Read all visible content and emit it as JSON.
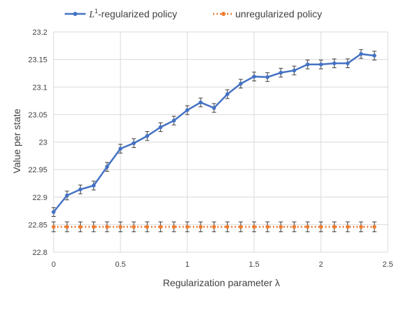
{
  "chart_data": {
    "type": "line",
    "xlabel": "Regularization parameter λ",
    "ylabel": "Value per state",
    "xlim": [
      0,
      2.5
    ],
    "ylim": [
      22.8,
      23.2
    ],
    "xticks": [
      "0",
      "0.5",
      "1",
      "1.5",
      "2",
      "2.5"
    ],
    "yticks": [
      "22.8",
      "22.85",
      "22.9",
      "22.95",
      "23",
      "23.05",
      "23.1",
      "23.15",
      "23.2"
    ],
    "grid": true,
    "legend_position": "top",
    "series": [
      {
        "name": "-regularized policy",
        "name_math": "L",
        "name_math_sup": "1",
        "color": "#4472c4",
        "line_style": "solid",
        "marker": "circle",
        "x": [
          0,
          0.1,
          0.2,
          0.3,
          0.4,
          0.5,
          0.6,
          0.7,
          0.8,
          0.9,
          1.0,
          1.1,
          1.2,
          1.3,
          1.4,
          1.5,
          1.6,
          1.7,
          1.8,
          1.9,
          2.0,
          2.1,
          2.2,
          2.3,
          2.4
        ],
        "y": [
          22.873,
          22.903,
          22.914,
          22.921,
          22.955,
          22.988,
          22.998,
          23.011,
          23.027,
          23.039,
          23.058,
          23.072,
          23.062,
          23.087,
          23.106,
          23.119,
          23.118,
          23.126,
          23.13,
          23.141,
          23.141,
          23.143,
          23.143,
          23.16,
          23.157
        ],
        "error": 0.008
      },
      {
        "name": "unregularized policy",
        "color": "#ed7d31",
        "line_style": "dotted",
        "marker": "circle",
        "x": [
          0,
          0.1,
          0.2,
          0.3,
          0.4,
          0.5,
          0.6,
          0.7,
          0.8,
          0.9,
          1.0,
          1.1,
          1.2,
          1.3,
          1.4,
          1.5,
          1.6,
          1.7,
          1.8,
          1.9,
          2.0,
          2.1,
          2.2,
          2.3,
          2.4
        ],
        "y": [
          22.846,
          22.846,
          22.846,
          22.846,
          22.846,
          22.846,
          22.846,
          22.846,
          22.846,
          22.846,
          22.846,
          22.846,
          22.846,
          22.846,
          22.846,
          22.846,
          22.846,
          22.846,
          22.846,
          22.846,
          22.846,
          22.846,
          22.846,
          22.846,
          22.846
        ],
        "error": 0.009
      }
    ]
  }
}
